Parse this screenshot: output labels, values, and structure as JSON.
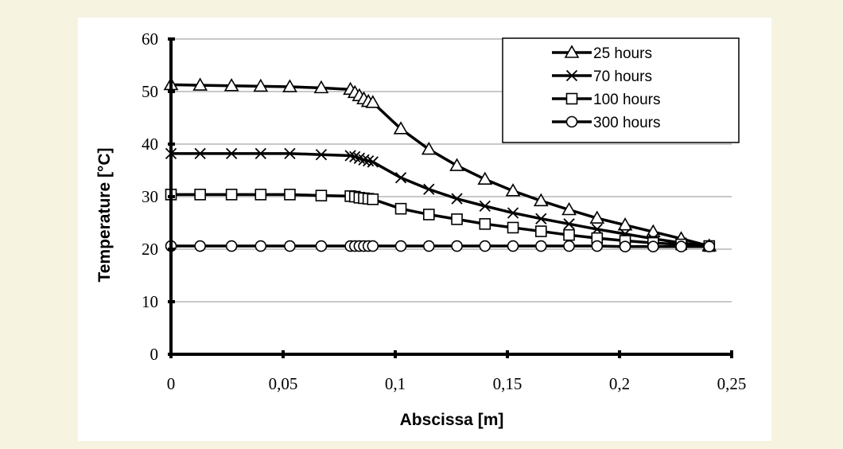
{
  "colors": {
    "background": "#f6f4e1",
    "panel": "#ffffff",
    "series": "#000000",
    "grid": "#a6a6a6"
  },
  "chart_data": {
    "type": "line",
    "title": "",
    "xlabel": "Abscissa [m]",
    "ylabel": "Temperature [°C]",
    "xlim": [
      0,
      0.25
    ],
    "ylim": [
      0,
      60
    ],
    "xticks": [
      0,
      0.05,
      0.1,
      0.15,
      0.2,
      0.25
    ],
    "xtick_labels": [
      "0",
      "0,05",
      "0,1",
      "0,15",
      "0,2",
      "0,25"
    ],
    "yticks": [
      0,
      10,
      20,
      30,
      40,
      50,
      60
    ],
    "ytick_labels": [
      "0",
      "10",
      "20",
      "30",
      "40",
      "50",
      "60"
    ],
    "grid": "horizontal",
    "legend_position": "top-right",
    "x": [
      0,
      0.013,
      0.027,
      0.04,
      0.053,
      0.067,
      0.08,
      0.082,
      0.084,
      0.086,
      0.088,
      0.09,
      0.1025,
      0.115,
      0.1275,
      0.14,
      0.1525,
      0.165,
      0.1775,
      0.19,
      0.2025,
      0.215,
      0.2275,
      0.24
    ],
    "series": [
      {
        "name": "25 hours",
        "marker": "triangle",
        "values": [
          51.3,
          51.2,
          51.1,
          51.0,
          50.9,
          50.7,
          50.4,
          49.8,
          49.2,
          48.6,
          48.1,
          47.9,
          42.9,
          39.0,
          35.9,
          33.3,
          31.1,
          29.2,
          27.5,
          25.9,
          24.6,
          23.3,
          22.0,
          20.6
        ]
      },
      {
        "name": "70 hours",
        "marker": "x",
        "values": [
          38.2,
          38.2,
          38.2,
          38.2,
          38.2,
          38.0,
          37.8,
          37.6,
          37.3,
          37.0,
          36.8,
          36.6,
          33.6,
          31.4,
          29.6,
          28.2,
          26.9,
          25.8,
          24.8,
          23.8,
          22.9,
          22.0,
          21.2,
          20.6
        ]
      },
      {
        "name": "100 hours",
        "marker": "square",
        "values": [
          30.4,
          30.4,
          30.4,
          30.4,
          30.4,
          30.2,
          30.1,
          30.0,
          29.8,
          29.7,
          29.6,
          29.5,
          27.7,
          26.6,
          25.7,
          24.8,
          24.1,
          23.4,
          22.7,
          22.1,
          21.6,
          21.2,
          20.9,
          20.6
        ]
      },
      {
        "name": "300 hours",
        "marker": "circle",
        "values": [
          20.6,
          20.6,
          20.6,
          20.6,
          20.6,
          20.6,
          20.6,
          20.6,
          20.6,
          20.6,
          20.6,
          20.6,
          20.6,
          20.6,
          20.6,
          20.6,
          20.6,
          20.6,
          20.6,
          20.6,
          20.5,
          20.5,
          20.5,
          20.5
        ]
      }
    ]
  }
}
